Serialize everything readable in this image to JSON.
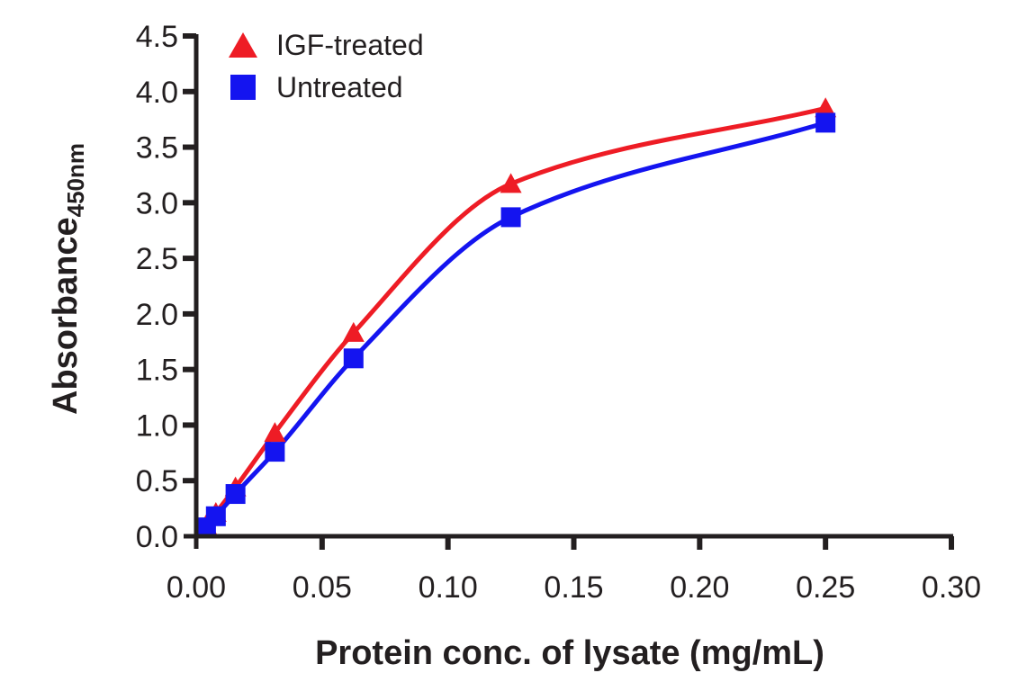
{
  "chart_data": {
    "type": "line",
    "title": "",
    "xlabel": "Protein conc. of lysate (mg/mL)",
    "ylabel": "Absorbance",
    "ylabel_subscript": "450nm",
    "xlim": [
      0,
      0.3
    ],
    "ylim": [
      0,
      4.5
    ],
    "x_ticks": [
      "0.00",
      "0.05",
      "0.10",
      "0.15",
      "0.20",
      "0.25",
      "0.30"
    ],
    "x_tick_values": [
      0,
      0.05,
      0.1,
      0.15,
      0.2,
      0.25,
      0.3
    ],
    "y_ticks": [
      "0.0",
      "0.5",
      "1.0",
      "1.5",
      "2.0",
      "2.5",
      "3.0",
      "3.5",
      "4.0",
      "4.5"
    ],
    "y_tick_values": [
      0,
      0.5,
      1.0,
      1.5,
      2.0,
      2.5,
      3.0,
      3.5,
      4.0,
      4.5
    ],
    "grid": false,
    "legend_position": "top-left",
    "series": [
      {
        "name": "IGF-treated",
        "color": "#ee1c25",
        "marker": "triangle",
        "x": [
          0.0039,
          0.0078,
          0.0156,
          0.03125,
          0.0625,
          0.125,
          0.25
        ],
        "y": [
          0.1,
          0.21,
          0.44,
          0.93,
          1.83,
          3.17,
          3.85
        ]
      },
      {
        "name": "Untreated",
        "color": "#1414f0",
        "marker": "square",
        "x": [
          0.0039,
          0.0078,
          0.0156,
          0.03125,
          0.0625,
          0.125,
          0.25
        ],
        "y": [
          0.08,
          0.18,
          0.38,
          0.76,
          1.6,
          2.87,
          3.72
        ]
      }
    ]
  }
}
